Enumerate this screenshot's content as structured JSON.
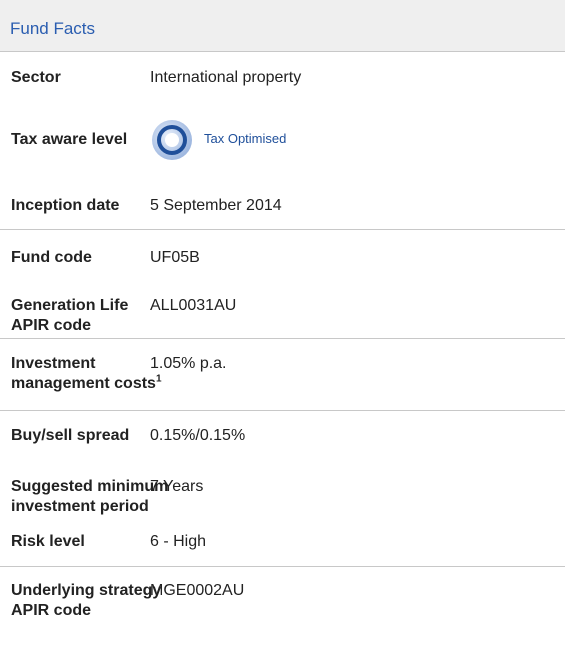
{
  "header": {
    "title": "Fund Facts"
  },
  "rows": [
    {
      "label": [
        "Sector"
      ],
      "value": "International property"
    },
    {
      "label": [
        "Tax aware level"
      ],
      "badge": "Tax Optimised"
    },
    {
      "label": [
        "Inception date"
      ],
      "value": "5 September 2014"
    },
    {
      "label": [
        "Fund code"
      ],
      "value": "UF05B"
    },
    {
      "label": [
        "Generation Life",
        "APIR code"
      ],
      "value": "ALL0031AU"
    },
    {
      "label": [
        "Investment",
        "management costs"
      ],
      "note": "1",
      "value": "1.05% p.a."
    },
    {
      "label": [
        "Buy/sell spread"
      ],
      "value": "0.15%/0.15%"
    },
    {
      "label": [
        "Suggested minimum",
        "investment period"
      ],
      "value": "7 Years"
    },
    {
      "label": [
        "Risk level"
      ],
      "value": "6 - High"
    },
    {
      "label": [
        "Underlying strategy",
        "APIR code"
      ],
      "value": "MGE0002AU"
    }
  ]
}
